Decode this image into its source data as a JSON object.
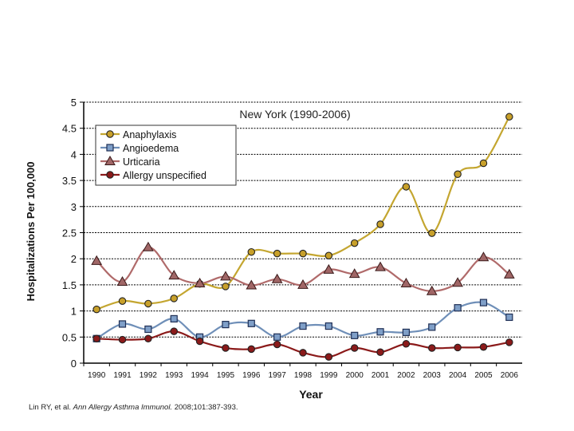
{
  "chart_data": {
    "type": "line",
    "title": "New York (1990-2006)",
    "xlabel": "Year",
    "ylabel": "Hospitalizations Per 100,000",
    "ylim": [
      0,
      5
    ],
    "yticks": [
      "0",
      "0.5",
      "1",
      "1.5",
      "2",
      "2.5",
      "3",
      "3.5",
      "4",
      "4.5",
      "5"
    ],
    "grid": true,
    "legend_position": "top-left",
    "categories": [
      "1990",
      "1991",
      "1992",
      "1993",
      "1994",
      "1995",
      "1996",
      "1997",
      "1998",
      "1999",
      "2000",
      "2001",
      "2002",
      "2003",
      "2004",
      "2005",
      "2006"
    ],
    "series": [
      {
        "name": "Anaphylaxis",
        "marker": "circle",
        "color": "#c8a02a",
        "line_color": "#c4a630",
        "values": [
          1.03,
          1.19,
          1.14,
          1.24,
          1.52,
          1.47,
          2.13,
          2.1,
          2.1,
          2.06,
          2.3,
          2.66,
          3.38,
          2.49,
          3.62,
          3.83,
          4.72
        ]
      },
      {
        "name": "Angioedema",
        "marker": "square",
        "color": "#7f9fc8",
        "line_color": "#6f8fb8",
        "values": [
          0.47,
          0.75,
          0.65,
          0.85,
          0.5,
          0.74,
          0.76,
          0.5,
          0.71,
          0.71,
          0.53,
          0.6,
          0.59,
          0.69,
          1.06,
          1.16,
          0.88
        ]
      },
      {
        "name": "Urticaria",
        "marker": "triangle",
        "color": "#a06666",
        "line_color": "#b06a6a",
        "values": [
          1.96,
          1.56,
          2.22,
          1.68,
          1.53,
          1.66,
          1.49,
          1.61,
          1.5,
          1.79,
          1.71,
          1.84,
          1.53,
          1.38,
          1.54,
          2.03,
          1.7
        ]
      },
      {
        "name": "Allergy unspecified",
        "marker": "circle",
        "color": "#8b1a1a",
        "line_color": "#8b1a1a",
        "values": [
          0.47,
          0.45,
          0.47,
          0.61,
          0.42,
          0.29,
          0.27,
          0.36,
          0.2,
          0.12,
          0.29,
          0.21,
          0.37,
          0.29,
          0.3,
          0.31,
          0.4
        ]
      }
    ]
  },
  "citation": {
    "authors": "Lin RY, et al.",
    "journal": "Ann Allergy Asthma Immunol.",
    "details": "2008;101:387-393."
  }
}
